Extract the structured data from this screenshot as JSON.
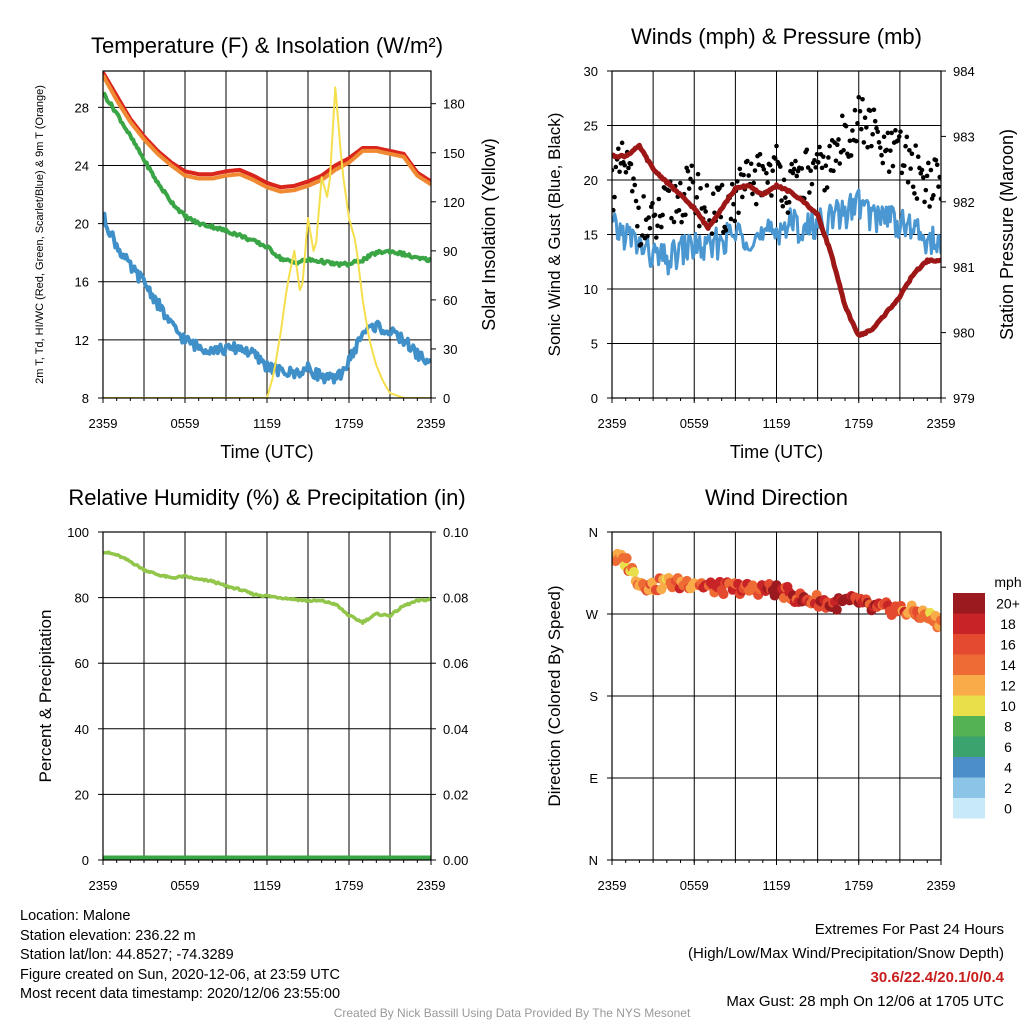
{
  "colors": {
    "temp_2m": "#d9251c",
    "temp_9m": "#f08a32",
    "dewpoint": "#3f8fc8",
    "hiwc": "#3aa544",
    "insolation": "#f5df4d",
    "wind_sonic": "#4b97d1",
    "gust": "#000000",
    "pressure": "#9e1717",
    "rh": "#92c64a",
    "precip": "#3aa544",
    "footer_highlight": "#c81e1e"
  },
  "chart_data": [
    {
      "type": "line",
      "title": "Temperature (F) & Insolation (W/m²)",
      "xlabel": "Time (UTC)",
      "x_ticks": [
        "2359",
        "0559",
        "1159",
        "1759",
        "2359"
      ],
      "y_left_label": "2m T, Td, HI/WC (Red, Green, Scarlet/Blue) & 9m T (Orange)",
      "y_left_ticks": [
        "8",
        "12",
        "16",
        "20",
        "24",
        "28"
      ],
      "ylim_left": [
        8,
        30.5
      ],
      "y_right_label": "Solar Insolation (Yellow)",
      "y_right_ticks": [
        "0",
        "30",
        "60",
        "90",
        "120",
        "150",
        "180"
      ],
      "ylim_right": [
        0,
        200
      ],
      "series": [
        {
          "key": "temp_2m",
          "axis": "left",
          "x": [
            0,
            1,
            2,
            3,
            4,
            5,
            6,
            7,
            8,
            9,
            10,
            11,
            12,
            13,
            14,
            15,
            16,
            17,
            18,
            19,
            20,
            21,
            22,
            23,
            24
          ],
          "values": [
            30.4,
            28.8,
            27.2,
            26.0,
            25.0,
            24.2,
            23.6,
            23.4,
            23.4,
            23.6,
            23.7,
            23.3,
            22.8,
            22.5,
            22.6,
            22.9,
            23.3,
            24.0,
            24.5,
            25.2,
            25.2,
            25.0,
            24.8,
            23.5,
            22.9
          ]
        },
        {
          "key": "temp_9m",
          "axis": "left",
          "x": [
            0,
            1,
            2,
            3,
            4,
            5,
            6,
            7,
            8,
            9,
            10,
            11,
            12,
            13,
            14,
            15,
            16,
            17,
            18,
            19,
            20,
            21,
            22,
            23,
            24
          ],
          "values": [
            30.2,
            28.5,
            27.0,
            25.8,
            24.8,
            24.0,
            23.3,
            23.1,
            23.1,
            23.3,
            23.4,
            23.0,
            22.5,
            22.2,
            22.3,
            22.6,
            23.0,
            23.7,
            24.2,
            25.0,
            25.0,
            24.8,
            24.6,
            23.3,
            22.7
          ]
        },
        {
          "key": "hiwc",
          "axis": "left",
          "x": [
            0,
            1,
            2,
            3,
            4,
            5,
            6,
            7,
            8,
            9,
            10,
            11,
            12,
            13,
            14,
            15,
            16,
            17,
            18,
            19,
            20,
            21,
            22,
            23,
            24
          ],
          "values": [
            29.0,
            27.6,
            26.0,
            24.4,
            22.8,
            21.5,
            20.5,
            20.0,
            19.8,
            19.5,
            19.2,
            18.8,
            18.4,
            17.6,
            17.3,
            17.5,
            17.4,
            17.2,
            17.2,
            17.5,
            18.0,
            18.1,
            17.9,
            17.6,
            17.5
          ]
        },
        {
          "key": "dewpoint",
          "axis": "left",
          "x": [
            0,
            1,
            2,
            3,
            4,
            5,
            6,
            7,
            8,
            9,
            10,
            11,
            12,
            13,
            14,
            15,
            16,
            17,
            18,
            19,
            20,
            21,
            22,
            23,
            24
          ],
          "values": [
            20.5,
            18.5,
            17.0,
            16.0,
            14.5,
            13.0,
            12.0,
            11.5,
            11.4,
            11.3,
            11.5,
            11.0,
            10.2,
            9.8,
            9.7,
            10.0,
            9.5,
            9.2,
            10.5,
            12.5,
            13.0,
            12.5,
            12.0,
            11.0,
            10.4
          ]
        },
        {
          "key": "insolation",
          "axis": "right",
          "x": [
            0,
            4,
            8,
            12,
            12.5,
            13,
            13.5,
            14,
            14.5,
            15,
            15.5,
            16,
            16.5,
            17,
            17.5,
            18,
            18.5,
            19,
            19.5,
            20,
            20.5,
            21,
            22,
            24
          ],
          "values": [
            0,
            0,
            0,
            0,
            15,
            40,
            70,
            90,
            60,
            110,
            85,
            135,
            120,
            190,
            140,
            110,
            95,
            60,
            35,
            20,
            10,
            3,
            0,
            0
          ]
        }
      ]
    },
    {
      "type": "line",
      "title": "Winds (mph) & Pressure (mb)",
      "xlabel": "Time (UTC)",
      "x_ticks": [
        "2359",
        "0559",
        "1159",
        "1759",
        "2359"
      ],
      "y_left_label": "Sonic Wind & Gust (Blue, Black)",
      "y_left_ticks": [
        "0",
        "5",
        "10",
        "15",
        "20",
        "25",
        "30"
      ],
      "ylim_left": [
        0,
        30
      ],
      "y_right_label": "Station Pressure (Maroon)",
      "y_right_ticks": [
        "979",
        "980",
        "981",
        "982",
        "983",
        "984"
      ],
      "ylim_right": [
        979,
        984
      ],
      "series": [
        {
          "key": "wind_sonic",
          "axis": "left",
          "x": [
            0,
            1,
            2,
            3,
            4,
            5,
            6,
            7,
            8,
            9,
            10,
            11,
            12,
            13,
            14,
            15,
            16,
            17,
            18,
            19,
            20,
            21,
            22,
            23,
            24
          ],
          "values": [
            15.5,
            15.0,
            14.0,
            13.0,
            12.5,
            13.5,
            14.0,
            13.5,
            14.5,
            15.0,
            15.0,
            14.5,
            15.5,
            16.0,
            15.5,
            16.0,
            16.5,
            17.0,
            18.0,
            16.5,
            17.0,
            16.0,
            15.5,
            14.5,
            14.0
          ]
        },
        {
          "key": "gust",
          "axis": "left",
          "style": "dots",
          "x": [
            0,
            1,
            2,
            3,
            4,
            5,
            6,
            7,
            8,
            9,
            10,
            11,
            12,
            13,
            14,
            15,
            16,
            17,
            18,
            19,
            20,
            21,
            22,
            23,
            24
          ],
          "values": [
            19.5,
            21.5,
            16.5,
            15.5,
            17.5,
            18.5,
            19.0,
            17.0,
            17.0,
            18.5,
            19.5,
            20.5,
            21.0,
            19.0,
            20.5,
            20.5,
            21.5,
            24.0,
            25.5,
            24.5,
            22.0,
            22.5,
            21.0,
            20.0,
            19.5
          ]
        },
        {
          "key": "pressure",
          "axis": "right",
          "x": [
            0,
            1,
            2,
            3,
            4,
            5,
            6,
            7,
            8,
            9,
            10,
            11,
            12,
            13,
            14,
            15,
            16,
            17,
            18,
            19,
            20,
            21,
            22,
            23,
            24
          ],
          "values": [
            982.7,
            982.7,
            982.85,
            982.5,
            982.3,
            982.1,
            981.9,
            981.6,
            981.9,
            982.2,
            982.25,
            982.1,
            982.25,
            982.15,
            982.0,
            981.8,
            981.2,
            980.4,
            979.95,
            980.05,
            980.3,
            980.55,
            980.9,
            981.1,
            981.1
          ]
        }
      ]
    },
    {
      "type": "line",
      "title": "Relative Humidity (%) & Precipitation (in)",
      "xlabel": "",
      "x_ticks": [
        "2359",
        "0559",
        "1159",
        "1759",
        "2359"
      ],
      "y_left_label": "Percent & Precipitation",
      "y_left_ticks": [
        "0",
        "20",
        "40",
        "60",
        "80",
        "100"
      ],
      "ylim_left": [
        0,
        100
      ],
      "y_right_label": "",
      "y_right_ticks": [
        "0.00",
        "0.02",
        "0.04",
        "0.06",
        "0.08",
        "0.10"
      ],
      "ylim_right": [
        0,
        0.1
      ],
      "series": [
        {
          "key": "rh",
          "axis": "left",
          "x": [
            0,
            1,
            2,
            3,
            4,
            5,
            6,
            7,
            8,
            9,
            10,
            11,
            12,
            13,
            14,
            15,
            16,
            17,
            18,
            19,
            20,
            21,
            22,
            23,
            24
          ],
          "values": [
            94,
            93,
            91,
            88.5,
            87,
            86,
            86.5,
            85.5,
            85,
            83.5,
            82.5,
            81,
            80.5,
            80,
            79.5,
            79,
            79,
            78,
            74.5,
            72.5,
            75,
            74.5,
            77.5,
            79,
            79.5
          ]
        },
        {
          "key": "precip",
          "axis": "right",
          "x": [
            0,
            24
          ],
          "values": [
            0,
            0
          ]
        }
      ]
    },
    {
      "type": "scatter",
      "title": "Wind Direction",
      "xlabel": "",
      "x_ticks": [
        "2359",
        "0559",
        "1159",
        "1759",
        "2359"
      ],
      "y_left_label": "Direction (Colored By Speed)",
      "y_left_ticks": [
        "N",
        "E",
        "S",
        "W",
        "N"
      ],
      "ylim_left": [
        0,
        360
      ],
      "colorbar": {
        "unit": "mph",
        "labels": [
          "0",
          "2",
          "4",
          "6",
          "8",
          "10",
          "12",
          "14",
          "16",
          "18",
          "20+"
        ],
        "colors": [
          "#c8e9f7",
          "#8cc4e8",
          "#4b8ec8",
          "#3aa36e",
          "#55b253",
          "#e9df4a",
          "#f8ab48",
          "#ef6b35",
          "#e34a2f",
          "#c82427",
          "#9b1a1f"
        ]
      },
      "series": [
        {
          "key": "direction",
          "x": [
            0,
            1,
            2,
            3,
            4,
            5,
            6,
            7,
            8,
            9,
            10,
            11,
            12,
            13,
            14,
            15,
            16,
            17,
            18,
            19,
            20,
            21,
            22,
            23,
            24
          ],
          "values": [
            332,
            328,
            305,
            300,
            305,
            303,
            305,
            300,
            298,
            299,
            297,
            298,
            296,
            292,
            285,
            285,
            280,
            283,
            284,
            276,
            276,
            275,
            272,
            268,
            259
          ],
          "speeds": [
            12,
            14,
            12,
            16,
            14,
            16,
            15,
            17,
            18,
            16,
            17,
            18,
            19,
            18,
            19,
            17,
            20,
            21,
            19,
            18,
            17,
            16,
            15,
            14,
            13
          ]
        }
      ]
    }
  ],
  "footer": {
    "location": "Location: Malone",
    "elevation": "Station elevation: 236.22 m",
    "latlon": "Station lat/lon: 44.8527; -74.3289",
    "created": "Figure created on Sun, 2020-12-06, at 23:59 UTC",
    "recent": "Most recent data timestamp: 2020/12/06 23:55:00",
    "extremes_title": "Extremes For Past 24 Hours",
    "extremes_subtitle": "(High/Low/Max Wind/Precipitation/Snow Depth)",
    "extremes_values": "30.6/22.4/20.1/0/0.4",
    "max_gust": "Max Gust: 28 mph On 12/06 at 1705 UTC"
  },
  "credit": "Created By Nick Bassill Using Data Provided By The NYS Mesonet"
}
